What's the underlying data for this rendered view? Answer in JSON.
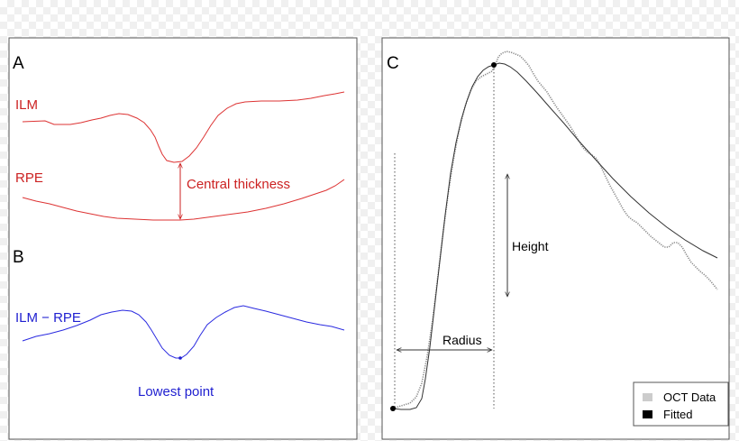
{
  "panels": {
    "a": {
      "label": "A",
      "ilm_label": "ILM",
      "rpe_label": "RPE",
      "thickness_label": "Central thickness",
      "color": "#cc2222"
    },
    "b": {
      "label": "B",
      "curve_label": "ILM − RPE",
      "lowest_label": "Lowest point",
      "color": "#1f1fd0"
    },
    "c": {
      "label": "C",
      "height_label": "Height",
      "radius_label": "Radius",
      "legend": {
        "oct": {
          "label": "OCT Data",
          "color": "#cccccc"
        },
        "fitted": {
          "label": "Fitted",
          "color": "#000000"
        }
      }
    }
  }
}
